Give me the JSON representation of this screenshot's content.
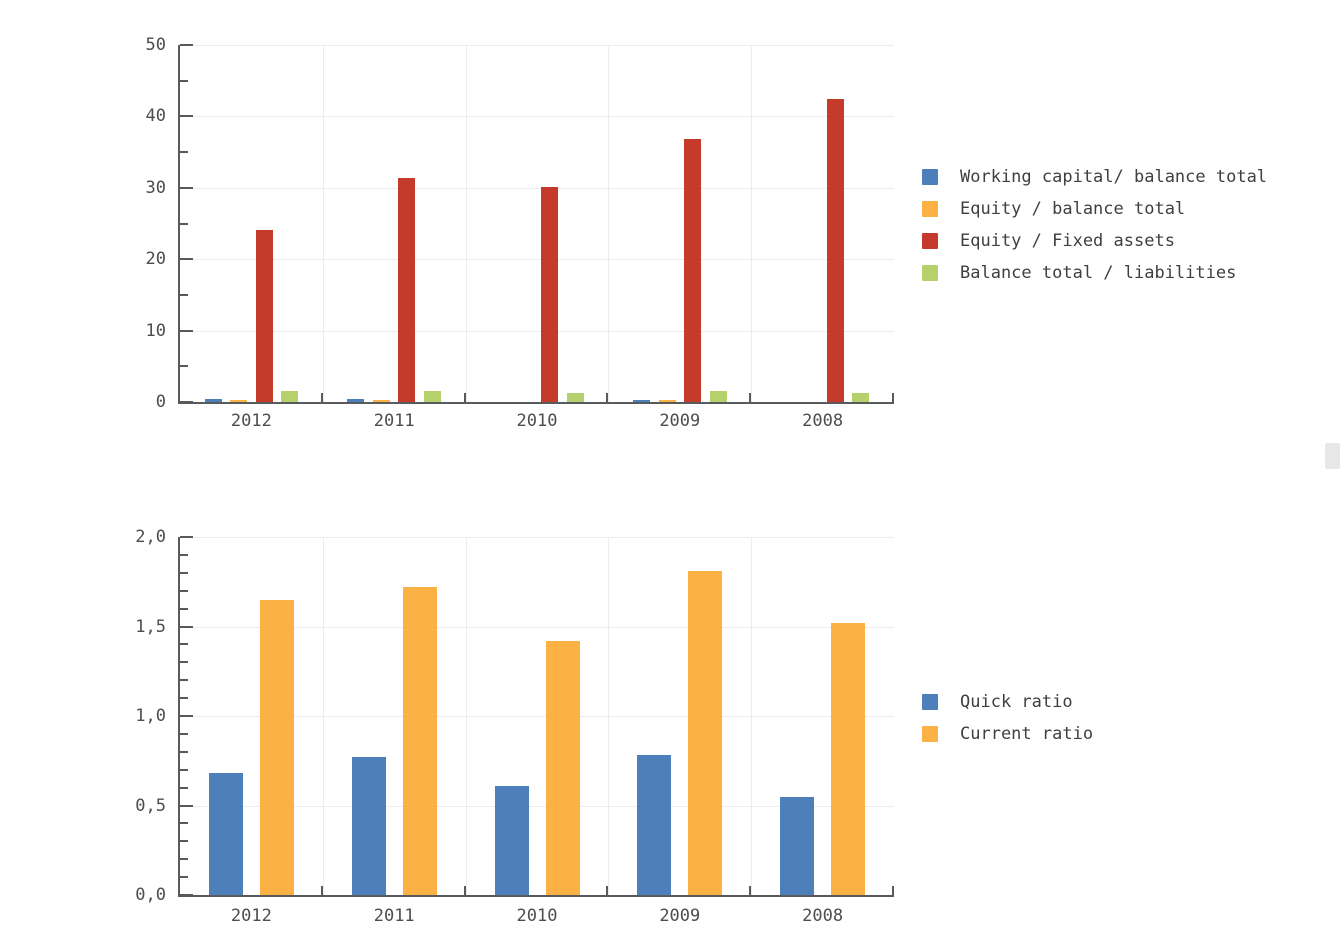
{
  "colors": {
    "background": "#ffffff",
    "axis": "#595a5c",
    "grid": "#ececec",
    "tick_text": "#4d4d4d",
    "legend_text": "#3f3f3f",
    "series_blue": "#4d80ba",
    "series_orange": "#fbb144",
    "series_red": "#c43b2c",
    "series_green": "#b5d16b",
    "scrollbar": "#e7e7e7"
  },
  "chart_data": [
    {
      "type": "bar",
      "title": "",
      "xlabel": "",
      "ylabel": "",
      "categories": [
        "2012",
        "2011",
        "2010",
        "2009",
        "2008"
      ],
      "series": [
        {
          "name": "Working capital/ balance total",
          "color": "#4d80ba",
          "values": [
            0.4,
            0.45,
            0,
            0.35,
            0
          ]
        },
        {
          "name": "Equity / balance total",
          "color": "#fbb144",
          "values": [
            0.3,
            0.35,
            0,
            0.25,
            0
          ]
        },
        {
          "name": "Equity / Fixed assets",
          "color": "#c43b2c",
          "values": [
            24.1,
            31.4,
            30.1,
            36.8,
            42.4
          ]
        },
        {
          "name": "Balance total / liabilities",
          "color": "#b5d16b",
          "values": [
            1.6,
            1.6,
            1.3,
            1.55,
            1.3
          ]
        }
      ],
      "ylim": [
        0,
        50
      ],
      "yticks": [
        {
          "value": 0,
          "label": "0"
        },
        {
          "value": 10,
          "label": "10"
        },
        {
          "value": 20,
          "label": "20"
        },
        {
          "value": 30,
          "label": "30"
        },
        {
          "value": 40,
          "label": "40"
        },
        {
          "value": 50,
          "label": "50"
        }
      ],
      "yminor_step": 5,
      "grid": true,
      "legend_position": "right"
    },
    {
      "type": "bar",
      "title": "",
      "xlabel": "",
      "ylabel": "",
      "categories": [
        "2012",
        "2011",
        "2010",
        "2009",
        "2008"
      ],
      "series": [
        {
          "name": "Quick ratio",
          "color": "#4d80ba",
          "values": [
            0.68,
            0.77,
            0.61,
            0.78,
            0.55
          ]
        },
        {
          "name": "Current ratio",
          "color": "#fbb144",
          "values": [
            1.65,
            1.72,
            1.42,
            1.81,
            1.52
          ]
        }
      ],
      "ylim": [
        0,
        2
      ],
      "yticks": [
        {
          "value": 0,
          "label": "0,0"
        },
        {
          "value": 0.5,
          "label": "0,5"
        },
        {
          "value": 1,
          "label": "1,0"
        },
        {
          "value": 1.5,
          "label": "1,5"
        },
        {
          "value": 2,
          "label": "2,0"
        }
      ],
      "yminor_step": 0.1,
      "grid": true,
      "legend_position": "right"
    }
  ]
}
